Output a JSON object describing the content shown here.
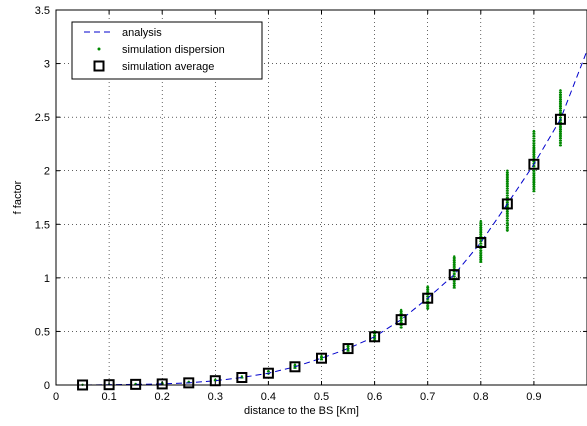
{
  "chart_data": {
    "type": "scatter",
    "xlabel": "distance to the BS [Km]",
    "ylabel": "f factor",
    "xlim": [
      0,
      1
    ],
    "ylim": [
      0,
      3.5
    ],
    "x_ticks": [
      0,
      0.1,
      0.2,
      0.3,
      0.4,
      0.5,
      0.6,
      0.7,
      0.8,
      0.9
    ],
    "x_tick_labels": [
      "0",
      "0.1",
      "0.2",
      "0.3",
      "0.4",
      "0.5",
      "0.6",
      "0.7",
      "0.8",
      "0.9"
    ],
    "y_ticks": [
      0,
      0.5,
      1,
      1.5,
      2,
      2.5,
      3,
      3.5
    ],
    "y_tick_labels": [
      "0",
      "0.5",
      "1",
      "1.5",
      "2",
      "2.5",
      "3",
      "3.5"
    ],
    "grid": true,
    "grid_style": "dotted",
    "legend_position": "top-left",
    "series": [
      {
        "name": "analysis",
        "style": "dashed-line",
        "color": "#0000cc",
        "x": [
          0,
          0.05,
          0.1,
          0.15,
          0.2,
          0.25,
          0.3,
          0.35,
          0.4,
          0.45,
          0.5,
          0.55,
          0.6,
          0.65,
          0.7,
          0.75,
          0.8,
          0.85,
          0.9,
          0.95,
          1.0
        ],
        "y": [
          0,
          0.0002,
          0.003,
          0.006,
          0.01,
          0.02,
          0.04,
          0.07,
          0.11,
          0.17,
          0.25,
          0.34,
          0.45,
          0.61,
          0.81,
          1.03,
          1.33,
          1.69,
          2.06,
          2.48,
          3.12
        ]
      },
      {
        "name": "simulation dispersion",
        "style": "vertical-range",
        "color": "#008800",
        "x": [
          0.05,
          0.1,
          0.15,
          0.2,
          0.25,
          0.3,
          0.35,
          0.4,
          0.45,
          0.5,
          0.55,
          0.6,
          0.65,
          0.7,
          0.75,
          0.8,
          0.85,
          0.9,
          0.95
        ],
        "y_min": [
          0,
          0,
          0,
          0.005,
          0.015,
          0.035,
          0.06,
          0.1,
          0.15,
          0.23,
          0.31,
          0.41,
          0.53,
          0.71,
          0.9,
          1.14,
          1.44,
          1.8,
          2.23
        ],
        "y_max": [
          0.002,
          0.005,
          0.01,
          0.02,
          0.03,
          0.05,
          0.08,
          0.13,
          0.19,
          0.27,
          0.37,
          0.5,
          0.7,
          0.92,
          1.2,
          1.53,
          2.0,
          2.37,
          2.75
        ]
      },
      {
        "name": "simulation average",
        "style": "square-marker",
        "color": "#000000",
        "x": [
          0.05,
          0.1,
          0.15,
          0.2,
          0.25,
          0.3,
          0.35,
          0.4,
          0.45,
          0.5,
          0.55,
          0.6,
          0.65,
          0.7,
          0.75,
          0.8,
          0.85,
          0.9,
          0.95
        ],
        "y": [
          0.0002,
          0.003,
          0.006,
          0.01,
          0.02,
          0.04,
          0.07,
          0.11,
          0.17,
          0.25,
          0.34,
          0.45,
          0.61,
          0.81,
          1.03,
          1.33,
          1.69,
          2.06,
          2.48
        ]
      }
    ]
  }
}
